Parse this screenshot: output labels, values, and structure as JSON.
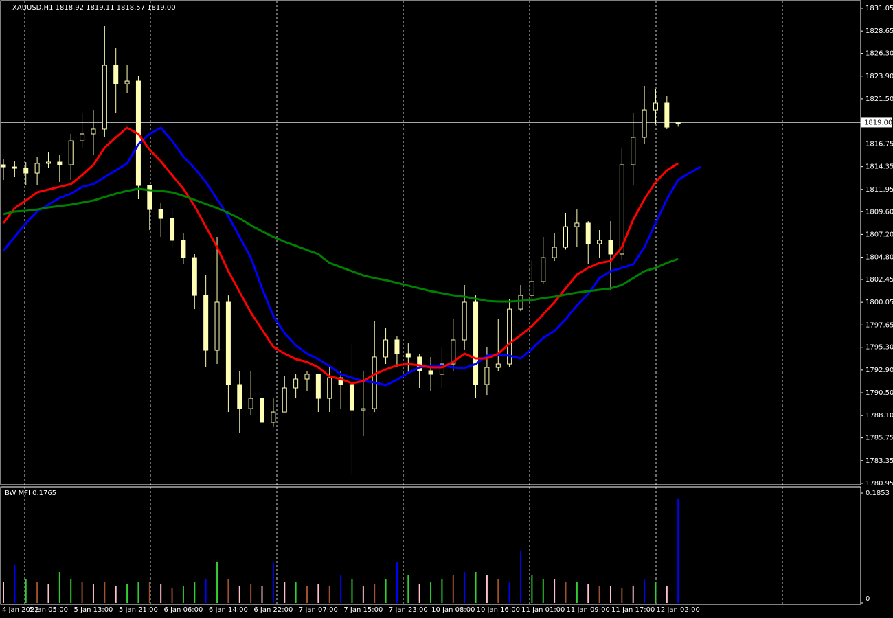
{
  "chart_data": [
    {
      "type": "candlestick",
      "title": "XAUUSD,H1  1818.92 1819.11 1818.57 1819.00",
      "categories": [
        "4 Jan 2022",
        null,
        null,
        null,
        "5 Jan 05:00",
        null,
        null,
        null,
        "5 Jan 13:00",
        null,
        null,
        null,
        "5 Jan 21:00",
        null,
        null,
        null,
        "6 Jan 06:00",
        null,
        null,
        null,
        "6 Jan 14:00",
        null,
        null,
        null,
        "6 Jan 22:00",
        null,
        null,
        null,
        "7 Jan 07:00",
        null,
        null,
        null,
        "7 Jan 15:00",
        null,
        null,
        null,
        "7 Jan 23:00",
        null,
        null,
        null,
        "10 Jan 08:00",
        null,
        null,
        null,
        "10 Jan 16:00",
        null,
        null,
        null,
        "11 Jan 01:00",
        null,
        null,
        null,
        "11 Jan 09:00",
        null,
        null,
        null,
        "11 Jan 17:00",
        null,
        null,
        null,
        "12 Jan 02:00",
        null,
        null
      ],
      "open": [
        1814.54,
        1814.32,
        1814.18,
        1813.67,
        1814.69,
        1814.83,
        1814.54,
        1817.07,
        1817.8,
        1818.31,
        1825.04,
        1823.08,
        1823.37,
        1812.37,
        1809.83,
        1808.89,
        1806.58,
        1804.76,
        1800.78,
        1794.99,
        1800.06,
        1791.37,
        1788.83,
        1789.92,
        1787.39,
        1788.47,
        1791.01,
        1791.95,
        1792.46,
        1789.92,
        1792.09,
        1791.37,
        1788.69,
        1788.83,
        1794.27,
        1796.08,
        1794.63,
        1794.27,
        1792.82,
        1792.46,
        1793.54,
        1796.08,
        1800.06,
        1791.37,
        1793.18,
        1793.54,
        1799.33,
        1800.78,
        1802.23,
        1804.76,
        1805.85,
        1808.02,
        1808.39,
        1806.21,
        1806.58,
        1805.13,
        1814.54,
        1817.44,
        1820.33,
        1821.06,
        1818.92,
        null,
        null
      ],
      "high": [
        1815.12,
        1814.9,
        1814.83,
        1815.41,
        1815.84,
        1815.63,
        1817.8,
        1819.97,
        1820.33,
        1829.17,
        1826.85,
        1825.04,
        1823.95,
        1812.37,
        1810.56,
        1809.83,
        1807.3,
        1805.13,
        1802.95,
        1806.94,
        1800.78,
        1792.82,
        1792.82,
        1790.65,
        1789.92,
        1792.24,
        1792.46,
        1792.82,
        1792.46,
        1793.18,
        1792.82,
        1795.71,
        1792.82,
        1798.03,
        1797.31,
        1796.44,
        1795.71,
        1794.63,
        1794.27,
        1795.35,
        1798.25,
        1801.87,
        1800.78,
        1795.35,
        1798.25,
        1800.42,
        1801.87,
        1804.4,
        1806.94,
        1807.3,
        1809.47,
        1809.83,
        1808.6,
        1807.66,
        1808.6,
        1816.35,
        1819.97,
        1822.87,
        1822.51,
        1821.78,
        1819.11,
        null,
        null
      ],
      "low": [
        1812.95,
        1813.24,
        1812.37,
        1812.37,
        1814.18,
        1812.73,
        1812.95,
        1816.35,
        1815.63,
        1817.44,
        1819.97,
        1822.14,
        1810.92,
        1807.66,
        1806.94,
        1805.85,
        1804.04,
        1799.33,
        1793.18,
        1793.54,
        1788.47,
        1786.3,
        1788.11,
        1785.79,
        1786.88,
        1788.47,
        1789.92,
        1790.65,
        1788.47,
        1788.47,
        1788.83,
        1781.96,
        1785.94,
        1788.47,
        1793.54,
        1793.18,
        1792.46,
        1791.01,
        1790.65,
        1791.01,
        1792.82,
        1794.99,
        1789.92,
        1790.28,
        1792.82,
        1793.18,
        1799.1,
        1800.06,
        1802.0,
        1804.4,
        1805.6,
        1805.85,
        1804.04,
        1804.76,
        1801.36,
        1804.5,
        1812.37,
        1816.71,
        1818.8,
        1818.31,
        1818.57,
        null,
        null
      ],
      "close": [
        1814.32,
        1814.18,
        1813.67,
        1814.69,
        1814.83,
        1814.54,
        1817.07,
        1817.8,
        1818.31,
        1825.04,
        1823.08,
        1823.37,
        1812.37,
        1809.83,
        1808.89,
        1806.58,
        1804.76,
        1800.78,
        1794.99,
        1800.06,
        1791.37,
        1788.83,
        1789.92,
        1787.39,
        1788.47,
        1791.01,
        1791.95,
        1792.46,
        1789.92,
        1792.09,
        1791.37,
        1788.69,
        1788.83,
        1794.27,
        1796.08,
        1794.63,
        1794.27,
        1792.82,
        1792.46,
        1793.54,
        1796.08,
        1800.06,
        1791.37,
        1793.18,
        1793.54,
        1799.33,
        1800.78,
        1802.23,
        1804.76,
        1805.85,
        1808.02,
        1808.39,
        1806.21,
        1806.58,
        1805.13,
        1814.54,
        1817.44,
        1820.33,
        1821.06,
        1818.52,
        1819.0,
        null,
        null
      ],
      "up_fill": "#000000",
      "down_fill": "#ffffb4",
      "wick_color": "#ffffb4",
      "lines": [
        {
          "color": "#0000ff",
          "values": [
            1805.49,
            1806.94,
            1808.39,
            1809.62,
            1810.34,
            1811.06,
            1811.5,
            1812.22,
            1812.51,
            1813.24,
            1813.96,
            1814.69,
            1816.71,
            1817.8,
            1818.45,
            1817.07,
            1815.41,
            1814.18,
            1812.73,
            1810.92,
            1809.11,
            1806.94,
            1804.76,
            1801.51,
            1798.61,
            1796.8,
            1795.5,
            1794.63,
            1794.05,
            1793.32,
            1792.46,
            1792.09,
            1791.73,
            1791.59,
            1791.3,
            1791.88,
            1792.6,
            1793.18,
            1793.32,
            1793.4,
            1793.18,
            1793.11,
            1793.54,
            1794.41,
            1794.49,
            1794.41,
            1794.12,
            1795.13,
            1796.29,
            1797.02,
            1798.25,
            1799.7,
            1800.93,
            1802.59,
            1803.32,
            1803.68,
            1804.04,
            1805.85,
            1808.39,
            1810.92,
            1812.95,
            1813.67,
            1814.32
          ]
        },
        {
          "color": "#ff0000",
          "values": [
            1808.39,
            1809.98,
            1810.78,
            1811.64,
            1811.93,
            1812.22,
            1812.51,
            1813.45,
            1814.54,
            1816.35,
            1817.44,
            1818.45,
            1817.8,
            1816.13,
            1814.9,
            1813.45,
            1812.01,
            1810.2,
            1808.02,
            1805.85,
            1803.32,
            1801.14,
            1798.97,
            1797.16,
            1795.35,
            1794.63,
            1794.05,
            1793.76,
            1793.18,
            1792.24,
            1791.95,
            1791.51,
            1791.73,
            1792.46,
            1792.96,
            1793.4,
            1793.54,
            1793.4,
            1793.18,
            1793.18,
            1793.76,
            1794.63,
            1794.12,
            1794.12,
            1794.63,
            1795.71,
            1796.58,
            1797.52,
            1798.76,
            1800.06,
            1801.51,
            1802.96,
            1803.68,
            1804.19,
            1804.4,
            1805.85,
            1808.75,
            1810.92,
            1812.73,
            1813.96,
            1814.69,
            null,
            null
          ]
        },
        {
          "color": "#008000",
          "values": [
            1809.33,
            1809.62,
            1809.69,
            1809.83,
            1810.05,
            1810.2,
            1810.34,
            1810.56,
            1810.78,
            1811.14,
            1811.5,
            1811.79,
            1812.01,
            1811.86,
            1811.79,
            1811.64,
            1811.28,
            1810.85,
            1810.41,
            1809.98,
            1809.47,
            1808.89,
            1808.17,
            1807.52,
            1806.94,
            1806.43,
            1806.0,
            1805.56,
            1805.13,
            1804.19,
            1803.75,
            1803.32,
            1802.88,
            1802.59,
            1802.38,
            1802.09,
            1801.8,
            1801.51,
            1801.22,
            1801.0,
            1800.78,
            1800.64,
            1800.42,
            1800.2,
            1800.13,
            1800.13,
            1800.2,
            1800.28,
            1800.49,
            1800.64,
            1800.86,
            1801.07,
            1801.22,
            1801.36,
            1801.51,
            1801.87,
            1802.59,
            1803.32,
            1803.68,
            1804.19,
            1804.62,
            null,
            null
          ]
        }
      ],
      "ylim": [
        1780.8,
        1831.92
      ],
      "yticks": [
        1831.05,
        1828.65,
        {
          "value": 1826.3,
          "label": "1826.30"
        },
        {
          "value": 1823.9,
          "label": "1823.90"
        },
        {
          "value": 1821.5,
          "label": "1821.50"
        },
        1816.75,
        1814.35,
        1811.95,
        {
          "value": 1809.6,
          "label": "1809.60"
        },
        {
          "value": 1807.2,
          "label": "1807.20"
        },
        {
          "value": 1804.8,
          "label": "1804.80"
        },
        1802.45,
        1800.05,
        1797.65,
        {
          "value": 1795.3,
          "label": "1795.30"
        },
        {
          "value": 1792.9,
          "label": "1792.90"
        },
        {
          "value": 1790.5,
          "label": "1790.50"
        },
        {
          "value": 1788.1,
          "label": "1788.10"
        },
        1785.75,
        1783.35,
        1780.95
      ],
      "price_line": {
        "value": 1819,
        "label": "1819.00"
      }
    },
    {
      "type": "bar",
      "title": "BW MFI 0.1765",
      "values": [
        0.0347,
        0.0637,
        0.0405,
        0.0347,
        0.0324,
        0.0521,
        0.0405,
        0.0347,
        0.0324,
        0.0347,
        0.029,
        0.0324,
        0.0347,
        0.0347,
        0.0324,
        0.0255,
        0.029,
        0.0347,
        0.0405,
        0.0695,
        0.0405,
        0.029,
        0.0324,
        0.029,
        0.0695,
        0.0347,
        0.0347,
        0.029,
        0.0324,
        0.029,
        0.0463,
        0.0405,
        0.029,
        0.0324,
        0.0405,
        0.0695,
        0.0463,
        0.0324,
        0.0347,
        0.0405,
        0.0463,
        0.0521,
        0.0521,
        0.0463,
        0.0405,
        0.0347,
        0.0869,
        0.0463,
        0.0405,
        0.0405,
        0.0347,
        0.0347,
        0.0324,
        0.029,
        0.029,
        0.0255,
        0.029,
        0.0405,
        0.0347,
        0.029,
        0.1765,
        null,
        null
      ],
      "colors": [
        "pink",
        "blue",
        "limegreen",
        "sienna",
        "pink",
        "limegreen",
        "limegreen",
        "sienna",
        "pink",
        "sienna",
        "pink",
        "limegreen",
        "limegreen",
        "sienna",
        "pink",
        "sienna",
        "limegreen",
        "limegreen",
        "blue",
        "limegreen",
        "sienna",
        "pink",
        "sienna",
        "pink",
        "blue",
        "pink",
        "limegreen",
        "sienna",
        "pink",
        "sienna",
        "blue",
        "limegreen",
        "pink",
        "sienna",
        "limegreen",
        "blue",
        "limegreen",
        "pink",
        "limegreen",
        "limegreen",
        "sienna",
        "blue",
        "limegreen",
        "pink",
        "sienna",
        "blue",
        "blue",
        "limegreen",
        "limegreen",
        "pink",
        "sienna",
        "limegreen",
        "pink",
        "sienna",
        "pink",
        "sienna",
        "pink",
        "blue",
        "limegreen",
        "pink",
        "blue",
        null,
        null
      ],
      "ylim": [
        0,
        0.1853
      ],
      "yticks": [
        0.1853,
        0
      ]
    }
  ]
}
